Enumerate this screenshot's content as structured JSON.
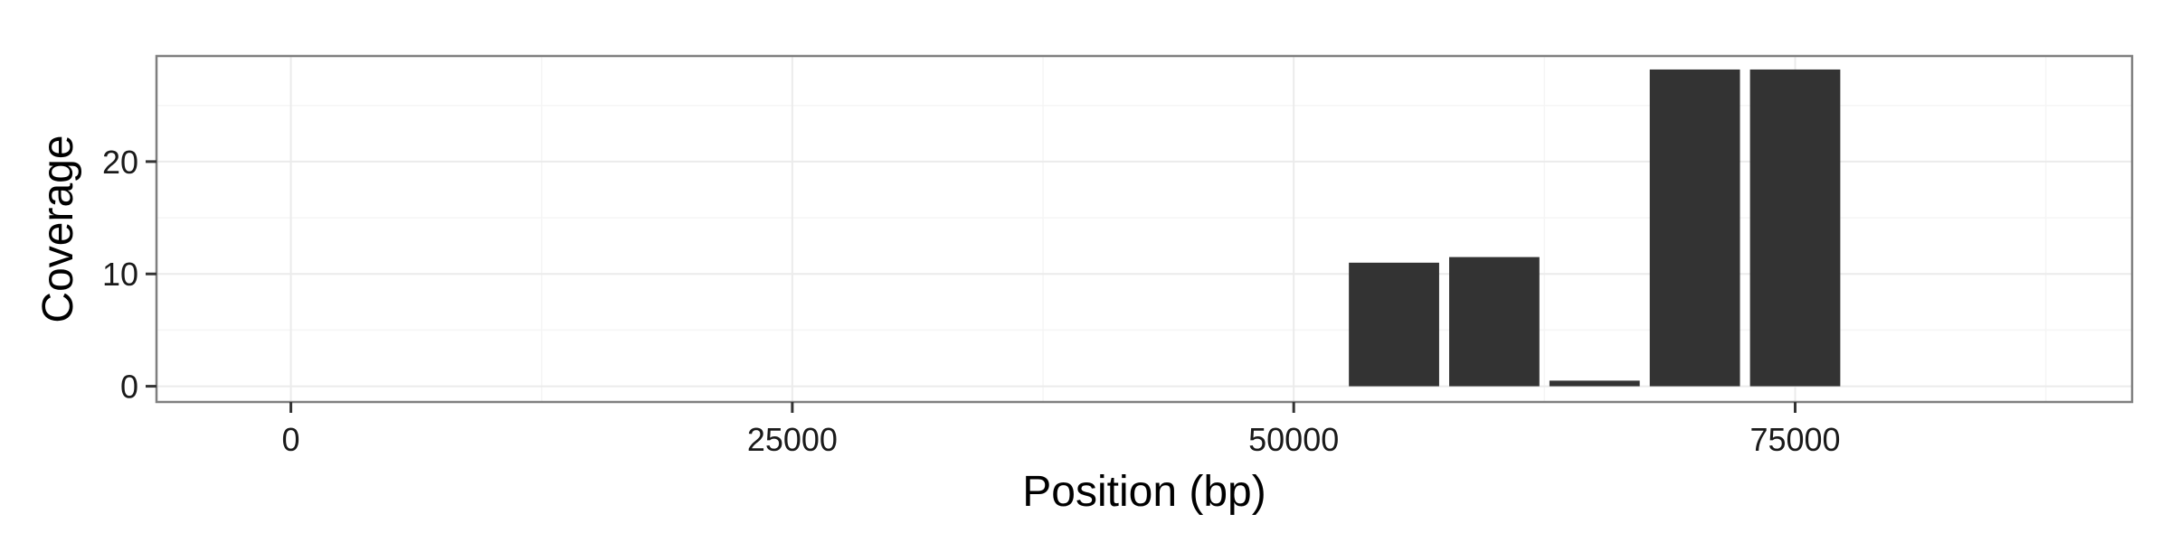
{
  "chart_data": {
    "type": "bar",
    "title": "",
    "xlabel": "Position (bp)",
    "ylabel": "Coverage",
    "x_ticks": [
      0,
      25000,
      50000,
      75000
    ],
    "y_ticks": [
      0,
      10,
      20
    ],
    "xlim": [
      -6700,
      91800
    ],
    "ylim": [
      -1.4,
      29.4
    ],
    "grid": true,
    "bars": [
      {
        "x": 55000,
        "width": 4500,
        "value": 11.0
      },
      {
        "x": 60000,
        "width": 4500,
        "value": 11.5
      },
      {
        "x": 65000,
        "width": 4500,
        "value": 0.5
      },
      {
        "x": 70000,
        "width": 4500,
        "value": 28.2
      },
      {
        "x": 75000,
        "width": 4500,
        "value": 28.2
      }
    ],
    "colors": {
      "bar": "#333333",
      "panel_border": "#7f7f7f",
      "grid_major": "#ebebeb",
      "grid_minor": "#f5f5f5",
      "tick": "#333333"
    }
  }
}
